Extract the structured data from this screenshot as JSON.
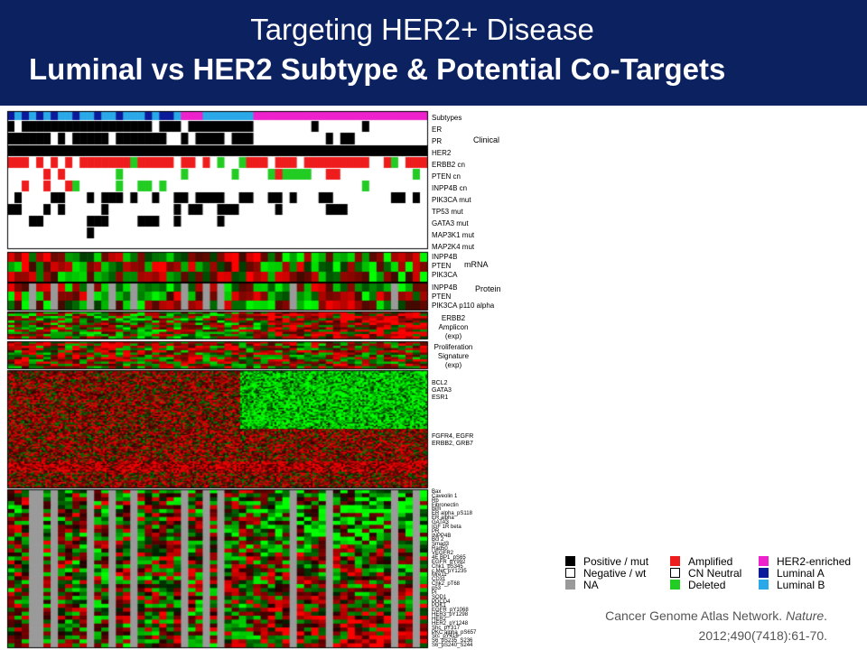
{
  "slide": {
    "title": "Targeting HER2+ Disease",
    "subtitle": "Luminal vs HER2 Subtype & Potential Co-Targets"
  },
  "figure": {
    "clinical_rows": [
      "Subtypes",
      "ER",
      "PR",
      "HER2",
      "ERBB2 cn",
      "PTEN cn",
      "INPP4B cn",
      "PIK3CA mut",
      "TP53 mut",
      "GATA3 mut",
      "MAP3K1 mut",
      "MAP2K4 mut"
    ],
    "group_labels": {
      "clinical": "Clinical",
      "mrna": "mRNA",
      "protein": "Protein",
      "amplicon": "ERBB2\nAmplicon\n(exp)",
      "proliferation": "Proliferation\nSignature\n(exp)"
    },
    "mrna_rows": [
      "INPP4B",
      "PTEN",
      "PIK3CA"
    ],
    "protein_rows": [
      "INPP4B",
      "PTEN",
      "PIK3CA p110 alpha"
    ],
    "expr_gene_labels_1": "BCL2\nGATA3\nESR1",
    "expr_gene_labels_2": "FGFR4, EGFR\nERBB2, GRB7",
    "rppa_rows": [
      "Bax",
      "Caveolin 1",
      "Rb",
      "Fibronectin",
      "Bim",
      "ER alpha_pS118",
      "ER alpha",
      "GATA3",
      "IGF 1R beta",
      "PR",
      "INPP4B",
      "Bcl 2",
      "Smad3",
      "Rad50",
      "VEGFR2",
      "4E BP1_pS65",
      "EGFR_pY992",
      "Chk1_pS345",
      "c Met_pY1235",
      "Mre11",
      "CD31",
      "Chk2_pT68",
      "p53",
      "PI",
      "SOD1",
      "PDCD4",
      "PDK1",
      "EGFR_pY1068",
      "HER3_pY1298",
      "HER2",
      "HER2_pY1248",
      "Shc_pY317",
      "PKC alpha_pS657",
      "Src_pY416",
      "S6_pS235_S236",
      "S6_pS240_S244"
    ]
  },
  "legend": {
    "items": [
      {
        "label": "Positive / mut",
        "color": "#000000"
      },
      {
        "label": "Negative / wt",
        "color": "#ffffff"
      },
      {
        "label": "NA",
        "color": "#9a9a9a"
      },
      {
        "label": "Amplified",
        "color": "#ee1c1c"
      },
      {
        "label": "CN Neutral",
        "color": "#ffffff"
      },
      {
        "label": "Deleted",
        "color": "#22cc22"
      },
      {
        "label": "HER2-enriched",
        "color": "#ee22cc"
      },
      {
        "label": "Luminal A",
        "color": "#0a1a9a"
      },
      {
        "label": "Luminal B",
        "color": "#2aa8e8"
      }
    ]
  },
  "citation": {
    "authors": "Cancer Genome Atlas Network.",
    "journal": "Nature",
    "ref": "2012;490(7418):61-70."
  }
}
